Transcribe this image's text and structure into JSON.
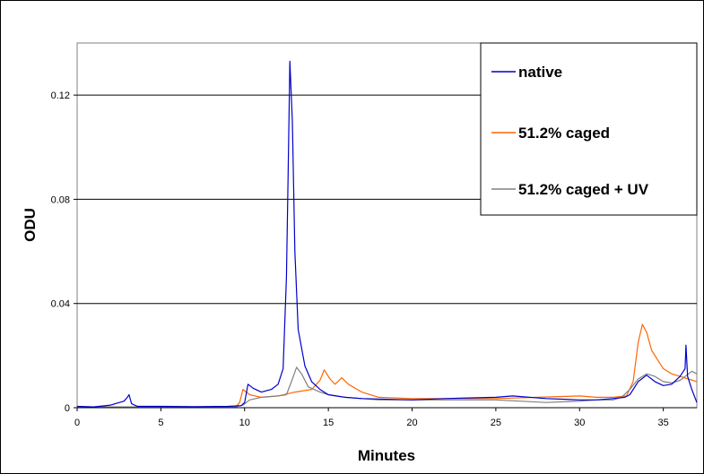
{
  "chart_data": {
    "type": "line",
    "title": "",
    "xlabel": "Minutes",
    "ylabel": "ODU",
    "xlim": [
      0,
      37
    ],
    "ylim": [
      0,
      0.14
    ],
    "x_ticks": [
      0,
      5,
      10,
      15,
      20,
      25,
      30,
      35
    ],
    "x_tick_labels": [
      "0",
      "5",
      "10",
      "15",
      "20",
      "25",
      "30",
      "35"
    ],
    "y_ticks": [
      0,
      0.04,
      0.08,
      0.12
    ],
    "y_tick_labels": [
      "0",
      "0.04",
      "0.08",
      "0.12"
    ],
    "grid": "horizontal",
    "legend_position": "top-right",
    "series": [
      {
        "name": "native",
        "color": "#0000cc",
        "points": [
          [
            0,
            0.0005
          ],
          [
            1,
            0.0003
          ],
          [
            2,
            0.001
          ],
          [
            2.8,
            0.0025
          ],
          [
            3.0,
            0.004
          ],
          [
            3.1,
            0.005
          ],
          [
            3.25,
            0.0015
          ],
          [
            3.6,
            0.0005
          ],
          [
            5,
            0.0005
          ],
          [
            7,
            0.0004
          ],
          [
            9,
            0.0005
          ],
          [
            9.8,
            0.0008
          ],
          [
            10.0,
            0.002
          ],
          [
            10.2,
            0.009
          ],
          [
            10.5,
            0.0075
          ],
          [
            11,
            0.006
          ],
          [
            11.6,
            0.007
          ],
          [
            12.0,
            0.009
          ],
          [
            12.3,
            0.015
          ],
          [
            12.5,
            0.05
          ],
          [
            12.6,
            0.09
          ],
          [
            12.7,
            0.133
          ],
          [
            12.85,
            0.11
          ],
          [
            13.0,
            0.06
          ],
          [
            13.2,
            0.03
          ],
          [
            13.6,
            0.016
          ],
          [
            14,
            0.01
          ],
          [
            14.5,
            0.007
          ],
          [
            15,
            0.005
          ],
          [
            16,
            0.004
          ],
          [
            17,
            0.0035
          ],
          [
            20,
            0.003
          ],
          [
            22,
            0.0035
          ],
          [
            25,
            0.004
          ],
          [
            26,
            0.0045
          ],
          [
            28,
            0.0035
          ],
          [
            30,
            0.003
          ],
          [
            31,
            0.003
          ],
          [
            32,
            0.0035
          ],
          [
            32.7,
            0.004
          ],
          [
            33,
            0.005
          ],
          [
            33.5,
            0.01
          ],
          [
            34,
            0.0125
          ],
          [
            34.5,
            0.01
          ],
          [
            35,
            0.0085
          ],
          [
            35.5,
            0.009
          ],
          [
            36,
            0.012
          ],
          [
            36.3,
            0.015
          ],
          [
            36.35,
            0.024
          ],
          [
            36.45,
            0.012
          ],
          [
            36.7,
            0.007
          ],
          [
            37,
            0.002
          ]
        ]
      },
      {
        "name": "51.2% caged",
        "color": "#ff6600",
        "points": [
          [
            0,
            0.0003
          ],
          [
            3,
            0.0003
          ],
          [
            5,
            0.0003
          ],
          [
            8,
            0.0003
          ],
          [
            9.5,
            0.0005
          ],
          [
            9.7,
            0.002
          ],
          [
            9.9,
            0.007
          ],
          [
            10.3,
            0.005
          ],
          [
            11,
            0.004
          ],
          [
            12,
            0.0045
          ],
          [
            13,
            0.006
          ],
          [
            14,
            0.007
          ],
          [
            14.5,
            0.0105
          ],
          [
            14.75,
            0.0145
          ],
          [
            15.1,
            0.011
          ],
          [
            15.4,
            0.009
          ],
          [
            15.8,
            0.0115
          ],
          [
            16.2,
            0.009
          ],
          [
            17,
            0.006
          ],
          [
            18,
            0.004
          ],
          [
            20,
            0.0035
          ],
          [
            25,
            0.0035
          ],
          [
            30,
            0.0045
          ],
          [
            31,
            0.004
          ],
          [
            32,
            0.004
          ],
          [
            32.8,
            0.0045
          ],
          [
            33.2,
            0.01
          ],
          [
            33.5,
            0.025
          ],
          [
            33.75,
            0.032
          ],
          [
            34,
            0.029
          ],
          [
            34.3,
            0.022
          ],
          [
            34.7,
            0.018
          ],
          [
            35,
            0.015
          ],
          [
            35.5,
            0.013
          ],
          [
            36,
            0.012
          ],
          [
            36.5,
            0.011
          ],
          [
            37,
            0.01
          ]
        ]
      },
      {
        "name": "51.2% caged + UV",
        "color": "#808080",
        "points": [
          [
            0,
            0.0003
          ],
          [
            5,
            0.0003
          ],
          [
            9.5,
            0.0003
          ],
          [
            9.9,
            0.001
          ],
          [
            10.3,
            0.003
          ],
          [
            11,
            0.004
          ],
          [
            12,
            0.0045
          ],
          [
            12.5,
            0.005
          ],
          [
            12.8,
            0.01
          ],
          [
            13.1,
            0.0155
          ],
          [
            13.4,
            0.013
          ],
          [
            13.8,
            0.008
          ],
          [
            14.5,
            0.006
          ],
          [
            15,
            0.005
          ],
          [
            16,
            0.004
          ],
          [
            18,
            0.003
          ],
          [
            20,
            0.003
          ],
          [
            25,
            0.003
          ],
          [
            28,
            0.002
          ],
          [
            30,
            0.0025
          ],
          [
            31,
            0.003
          ],
          [
            32,
            0.003
          ],
          [
            32.5,
            0.004
          ],
          [
            33,
            0.007
          ],
          [
            33.5,
            0.011
          ],
          [
            34,
            0.013
          ],
          [
            34.5,
            0.012
          ],
          [
            35,
            0.01
          ],
          [
            35.5,
            0.0095
          ],
          [
            36,
            0.0105
          ],
          [
            36.4,
            0.0125
          ],
          [
            36.7,
            0.014
          ],
          [
            37,
            0.013
          ]
        ]
      }
    ]
  }
}
